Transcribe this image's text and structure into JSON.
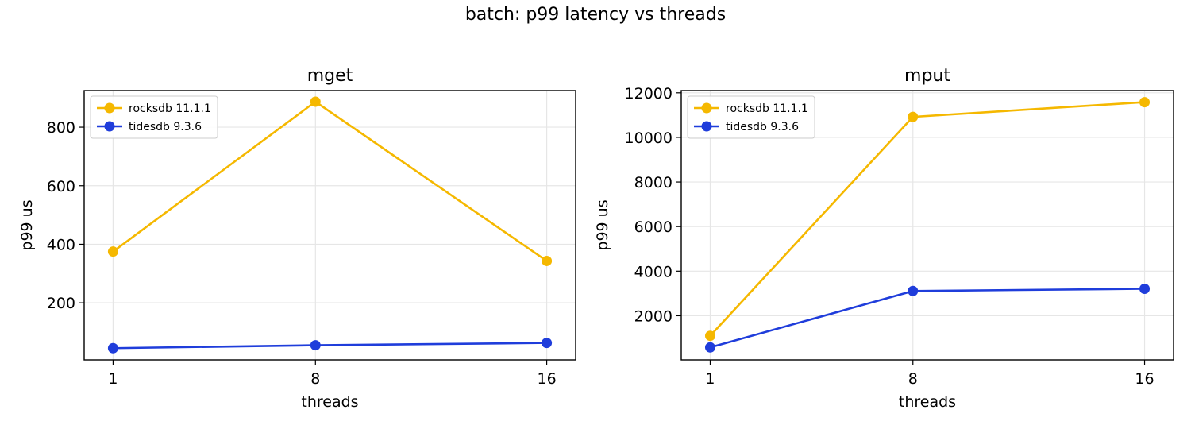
{
  "figure": {
    "suptitle": "batch: p99 latency vs threads"
  },
  "colors": {
    "rocksdb": "#f5b800",
    "tidesdb": "#1f3ddb",
    "grid": "#e6e6e6",
    "axis": "#000000"
  },
  "chart_data": [
    {
      "type": "line",
      "title": "mget",
      "xlabel": "threads",
      "ylabel": "p99 us",
      "x": [
        1,
        8,
        16
      ],
      "xticks": [
        "1",
        "8",
        "16"
      ],
      "xlim": [
        0,
        17
      ],
      "ylim": [
        5,
        925
      ],
      "yticks": [
        200,
        400,
        600,
        800
      ],
      "yticklabels": [
        "200",
        "400",
        "600",
        "800"
      ],
      "grid": true,
      "legend": "top-left",
      "series": [
        {
          "name": "rocksdb 11.1.1",
          "color_key": "rocksdb",
          "values": [
            375,
            887,
            343
          ]
        },
        {
          "name": "tidesdb 9.3.6",
          "color_key": "tidesdb",
          "values": [
            45,
            55,
            63
          ]
        }
      ]
    },
    {
      "type": "line",
      "title": "mput",
      "xlabel": "threads",
      "ylabel": "p99 us",
      "x": [
        1,
        8,
        16
      ],
      "xticks": [
        "1",
        "8",
        "16"
      ],
      "xlim": [
        0,
        17
      ],
      "ylim": [
        20,
        12100
      ],
      "yticks": [
        2000,
        4000,
        6000,
        8000,
        10000,
        12000
      ],
      "yticklabels": [
        "2000",
        "4000",
        "6000",
        "8000",
        "10000",
        "12000"
      ],
      "grid": true,
      "legend": "top-left",
      "series": [
        {
          "name": "rocksdb 11.1.1",
          "color_key": "rocksdb",
          "values": [
            1100,
            10920,
            11580
          ]
        },
        {
          "name": "tidesdb 9.3.6",
          "color_key": "tidesdb",
          "values": [
            580,
            3110,
            3210
          ]
        }
      ]
    }
  ]
}
